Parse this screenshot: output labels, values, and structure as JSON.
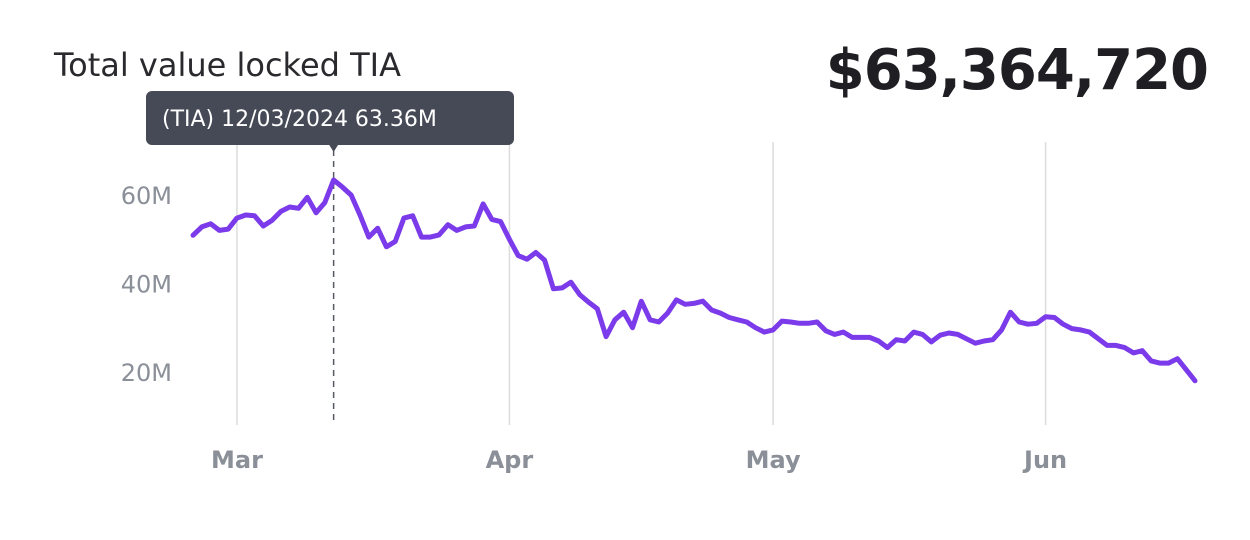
{
  "header": {
    "title": "Total value locked TIA",
    "total": "$63,364,720"
  },
  "tooltip": {
    "text": "(TIA) 12/03/2024 63.36M",
    "date": "2024-03-12"
  },
  "colors": {
    "line": "#7b3bea",
    "grid": "#dcdcdc",
    "tooltip_bg": "#454a56",
    "text": "#2a2a2e",
    "tick": "#8a8f98"
  },
  "chart_data": {
    "type": "line",
    "title": "Total value locked TIA",
    "xlabel": "",
    "ylabel": "",
    "x_axis": "date",
    "xlim": [
      "2024-02-25",
      "2024-06-18"
    ],
    "ylim": [
      8,
      72
    ],
    "yticks": [
      20,
      40,
      60
    ],
    "ytick_labels": [
      "20M",
      "40M",
      "60M"
    ],
    "xticks": [
      "2024-03-01",
      "2024-04-01",
      "2024-05-01",
      "2024-06-01"
    ],
    "xtick_labels": [
      "Mar",
      "Apr",
      "May",
      "Jun"
    ],
    "grid": "vertical",
    "series": [
      {
        "values": [
          [
            "2024-02-25",
            50.9
          ],
          [
            "2024-02-26",
            52.8
          ],
          [
            "2024-02-27",
            53.5
          ],
          [
            "2024-02-28",
            52.0
          ],
          [
            "2024-02-29",
            52.3
          ],
          [
            "2024-03-01",
            54.8
          ],
          [
            "2024-03-02",
            55.5
          ],
          [
            "2024-03-03",
            55.3
          ],
          [
            "2024-03-04",
            53.0
          ],
          [
            "2024-03-05",
            54.3
          ],
          [
            "2024-03-06",
            56.3
          ],
          [
            "2024-03-07",
            57.3
          ],
          [
            "2024-03-08",
            57.0
          ],
          [
            "2024-03-09",
            59.5
          ],
          [
            "2024-03-10",
            56.0
          ],
          [
            "2024-03-11",
            58.3
          ],
          [
            "2024-03-12",
            63.4
          ],
          [
            "2024-03-13",
            61.8
          ],
          [
            "2024-03-14",
            60.0
          ],
          [
            "2024-03-15",
            55.5
          ],
          [
            "2024-03-16",
            50.5
          ],
          [
            "2024-03-17",
            52.5
          ],
          [
            "2024-03-18",
            48.3
          ],
          [
            "2024-03-19",
            49.5
          ],
          [
            "2024-03-20",
            54.8
          ],
          [
            "2024-03-21",
            55.3
          ],
          [
            "2024-03-22",
            50.5
          ],
          [
            "2024-03-23",
            50.5
          ],
          [
            "2024-03-24",
            51.0
          ],
          [
            "2024-03-25",
            53.3
          ],
          [
            "2024-03-26",
            52.0
          ],
          [
            "2024-03-27",
            52.8
          ],
          [
            "2024-03-28",
            53.0
          ],
          [
            "2024-03-29",
            58.0
          ],
          [
            "2024-03-30",
            54.5
          ],
          [
            "2024-03-31",
            54.0
          ],
          [
            "2024-04-01",
            50.0
          ],
          [
            "2024-04-02",
            46.3
          ],
          [
            "2024-04-03",
            45.5
          ],
          [
            "2024-04-04",
            47.0
          ],
          [
            "2024-04-05",
            45.3
          ],
          [
            "2024-04-06",
            38.8
          ],
          [
            "2024-04-07",
            39.0
          ],
          [
            "2024-04-08",
            40.3
          ],
          [
            "2024-04-09",
            37.5
          ],
          [
            "2024-04-10",
            35.8
          ],
          [
            "2024-04-11",
            34.3
          ],
          [
            "2024-04-12",
            28.0
          ],
          [
            "2024-04-13",
            31.8
          ],
          [
            "2024-04-14",
            33.5
          ],
          [
            "2024-04-15",
            30.0
          ],
          [
            "2024-04-16",
            36.0
          ],
          [
            "2024-04-17",
            31.8
          ],
          [
            "2024-04-18",
            31.3
          ],
          [
            "2024-04-19",
            33.3
          ],
          [
            "2024-04-20",
            36.3
          ],
          [
            "2024-04-21",
            35.3
          ],
          [
            "2024-04-22",
            35.5
          ],
          [
            "2024-04-23",
            36.0
          ],
          [
            "2024-04-24",
            34.0
          ],
          [
            "2024-04-25",
            33.3
          ],
          [
            "2024-04-26",
            32.3
          ],
          [
            "2024-04-27",
            31.8
          ],
          [
            "2024-04-28",
            31.3
          ],
          [
            "2024-04-29",
            30.0
          ],
          [
            "2024-04-30",
            29.0
          ],
          [
            "2024-05-01",
            29.5
          ],
          [
            "2024-05-02",
            31.5
          ],
          [
            "2024-05-03",
            31.3
          ],
          [
            "2024-05-04",
            31.0
          ],
          [
            "2024-05-05",
            31.0
          ],
          [
            "2024-05-06",
            31.3
          ],
          [
            "2024-05-07",
            29.3
          ],
          [
            "2024-05-08",
            28.5
          ],
          [
            "2024-05-09",
            29.0
          ],
          [
            "2024-05-10",
            27.8
          ],
          [
            "2024-05-11",
            27.8
          ],
          [
            "2024-05-12",
            27.8
          ],
          [
            "2024-05-13",
            27.0
          ],
          [
            "2024-05-14",
            25.5
          ],
          [
            "2024-05-15",
            27.3
          ],
          [
            "2024-05-16",
            27.0
          ],
          [
            "2024-05-17",
            29.0
          ],
          [
            "2024-05-18",
            28.5
          ],
          [
            "2024-05-19",
            26.8
          ],
          [
            "2024-05-20",
            28.3
          ],
          [
            "2024-05-21",
            28.8
          ],
          [
            "2024-05-22",
            28.5
          ],
          [
            "2024-05-23",
            27.5
          ],
          [
            "2024-05-24",
            26.5
          ],
          [
            "2024-05-25",
            27.0
          ],
          [
            "2024-05-26",
            27.3
          ],
          [
            "2024-05-27",
            29.5
          ],
          [
            "2024-05-28",
            33.5
          ],
          [
            "2024-05-29",
            31.3
          ],
          [
            "2024-05-30",
            30.8
          ],
          [
            "2024-05-31",
            31.0
          ],
          [
            "2024-06-01",
            32.5
          ],
          [
            "2024-06-02",
            32.3
          ],
          [
            "2024-06-03",
            30.8
          ],
          [
            "2024-06-04",
            29.8
          ],
          [
            "2024-06-05",
            29.5
          ],
          [
            "2024-06-06",
            29.0
          ],
          [
            "2024-06-07",
            27.5
          ],
          [
            "2024-06-08",
            26.0
          ],
          [
            "2024-06-09",
            26.0
          ],
          [
            "2024-06-10",
            25.5
          ],
          [
            "2024-06-11",
            24.3
          ],
          [
            "2024-06-12",
            24.8
          ],
          [
            "2024-06-13",
            22.5
          ],
          [
            "2024-06-14",
            22.0
          ],
          [
            "2024-06-15",
            22.0
          ],
          [
            "2024-06-16",
            23.0
          ],
          [
            "2024-06-17",
            20.5
          ],
          [
            "2024-06-18",
            18.0
          ]
        ]
      }
    ]
  }
}
